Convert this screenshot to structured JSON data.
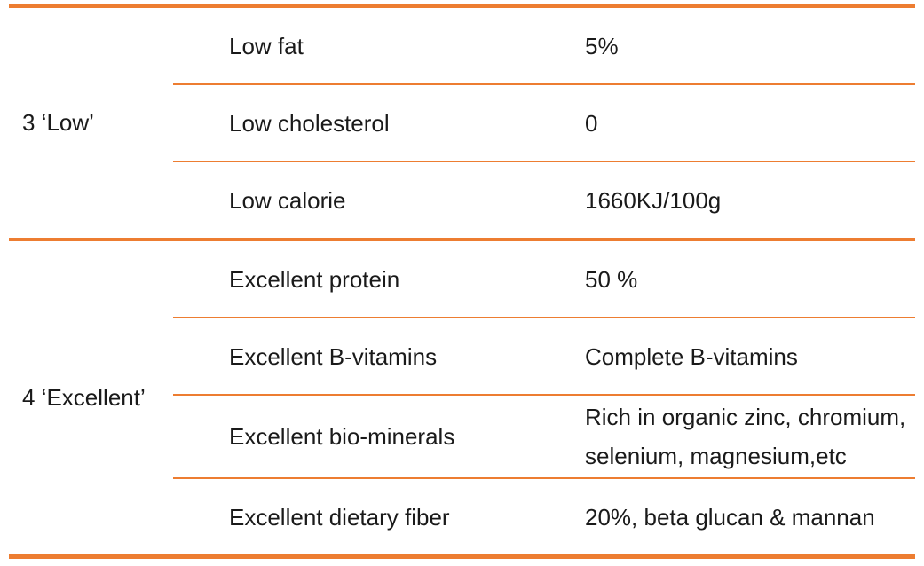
{
  "table": {
    "accent_color": "#ED7D31",
    "text_color": "#1a1a1a",
    "groups": [
      {
        "label": "3 ‘Low’",
        "rows": [
          {
            "name": "Low fat",
            "value": "5%"
          },
          {
            "name": "Low cholesterol",
            "value": "0"
          },
          {
            "name": "Low calorie",
            "value": "1660KJ/100g"
          }
        ]
      },
      {
        "label": "4 ‘Excellent’",
        "rows": [
          {
            "name": "Excellent protein",
            "value": "50 %"
          },
          {
            "name": "Excellent B-vitamins",
            "value": "Complete B-vitamins"
          },
          {
            "name": "Excellent bio-minerals",
            "value": "Rich in organic zinc, chromium, selenium, magnesium,etc"
          },
          {
            "name": "Excellent dietary fiber",
            "value": "20%, beta glucan & mannan"
          }
        ]
      }
    ]
  }
}
